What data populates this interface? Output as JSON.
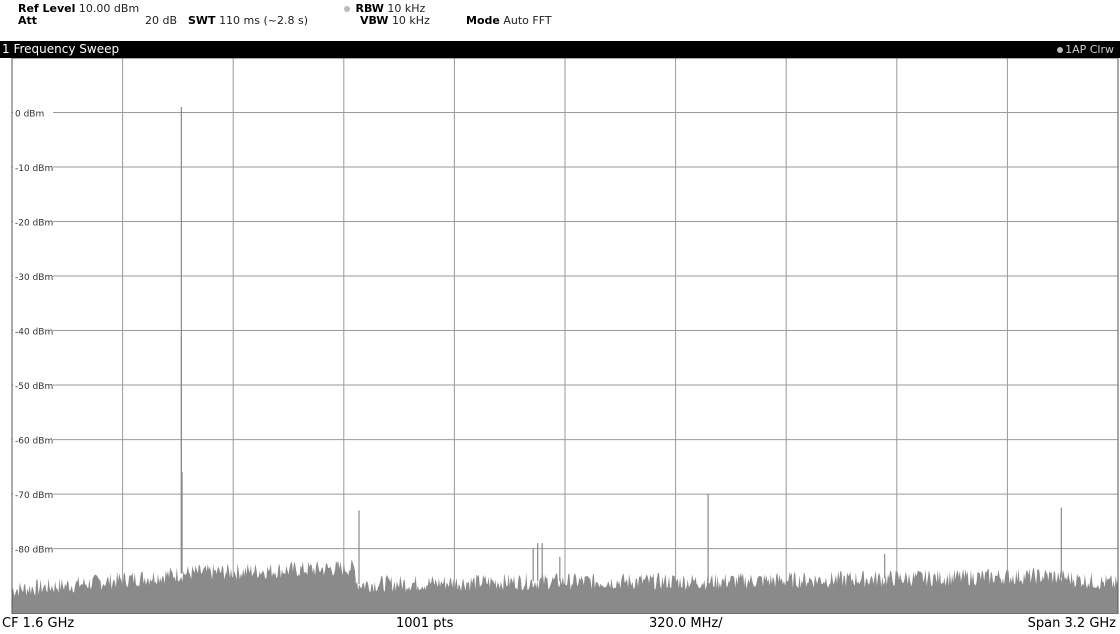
{
  "header": {
    "ref_level_label": "Ref Level",
    "ref_level_value": "10.00 dBm",
    "att_label": "Att",
    "att_value": "20 dB",
    "swt_label": "SWT",
    "swt_value": "110 ms (~2.8 s)",
    "rbw_label": "RBW",
    "rbw_value": "10 kHz",
    "vbw_label": "VBW",
    "vbw_value": "10 kHz",
    "mode_label": "Mode",
    "mode_value": "Auto FFT"
  },
  "window": {
    "title": "1 Frequency Sweep",
    "trace_label": "1AP Clrw"
  },
  "footer": {
    "center": "CF 1.6 GHz",
    "points": "1001 pts",
    "per_div": "320.0 MHz/",
    "span": "Span 3.2 GHz"
  },
  "chart_data": {
    "type": "line",
    "title": "",
    "xlabel": "",
    "ylabel": "",
    "x_unit": "GHz",
    "xlim": [
      0.0,
      3.2
    ],
    "ylim": [
      -92,
      10
    ],
    "grid": true,
    "yticks": [
      {
        "value": 0,
        "label": "0 dBm"
      },
      {
        "value": -10,
        "label": "-10 dBm"
      },
      {
        "value": -20,
        "label": "-20 dBm"
      },
      {
        "value": -30,
        "label": "-30 dBm"
      },
      {
        "value": -40,
        "label": "-40 dBm"
      },
      {
        "value": -50,
        "label": "-50 dBm"
      },
      {
        "value": -60,
        "label": "-60 dBm"
      },
      {
        "value": -70,
        "label": "-70 dBm"
      },
      {
        "value": -80,
        "label": "-80 dBm"
      }
    ],
    "noise_floor_dbm": [
      {
        "x": 0.0,
        "y": -87.5
      },
      {
        "x": 0.2,
        "y": -86.5
      },
      {
        "x": 0.5,
        "y": -84.5
      },
      {
        "x": 0.99,
        "y": -83.5
      },
      {
        "x": 1.0,
        "y": -86.5
      },
      {
        "x": 1.5,
        "y": -86.0
      },
      {
        "x": 2.0,
        "y": -86.0
      },
      {
        "x": 2.5,
        "y": -85.5
      },
      {
        "x": 3.0,
        "y": -85.0
      },
      {
        "x": 3.2,
        "y": -86.5
      }
    ],
    "peaks": [
      {
        "x": 0.49,
        "y": 1
      },
      {
        "x": 0.49,
        "y": -41
      },
      {
        "x": 0.492,
        "y": -66
      },
      {
        "x": 1.004,
        "y": -73
      },
      {
        "x": 1.508,
        "y": -80
      },
      {
        "x": 1.521,
        "y": -79
      },
      {
        "x": 1.534,
        "y": -79
      },
      {
        "x": 1.585,
        "y": -81.5
      },
      {
        "x": 2.014,
        "y": -70
      },
      {
        "x": 2.525,
        "y": -81
      },
      {
        "x": 3.036,
        "y": -72.5
      }
    ]
  }
}
